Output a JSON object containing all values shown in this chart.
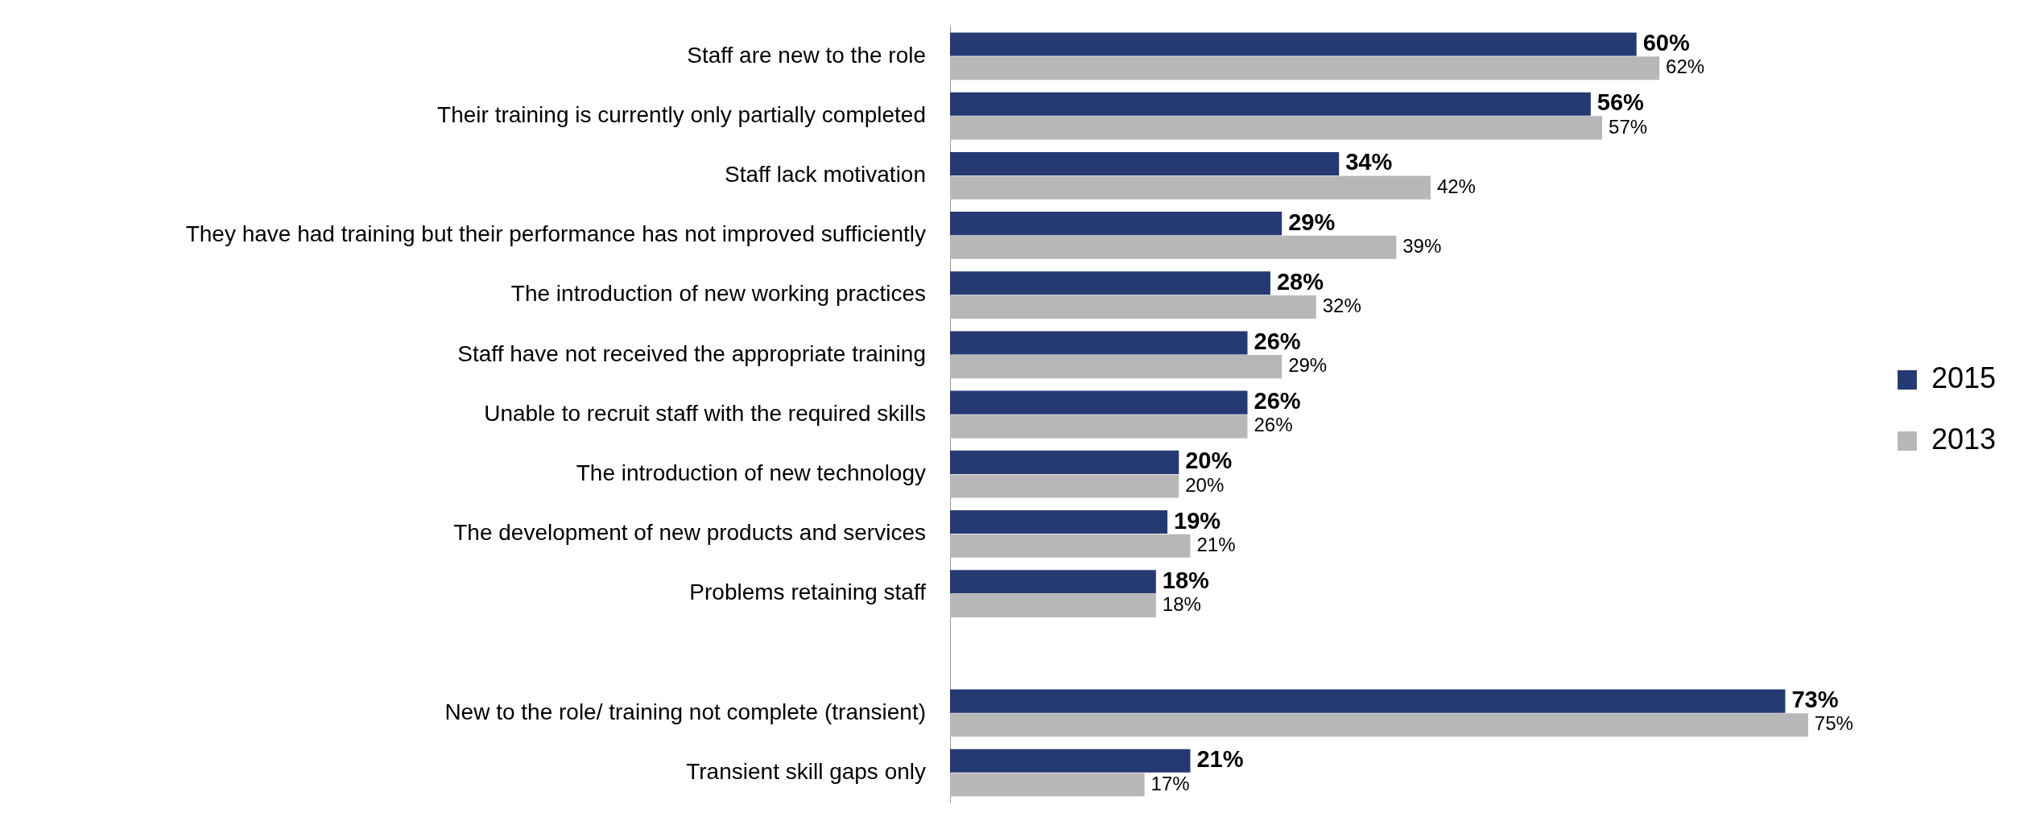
{
  "chart_data": {
    "type": "bar",
    "orientation": "horizontal",
    "categories": [
      "Staff are new to the role",
      "Their training is currently only partially completed",
      "Staff lack motivation",
      "They have had training but their performance has not improved sufficiently",
      "The introduction of new working practices",
      "Staff have not received the appropriate training",
      "Unable to recruit staff with the required skills",
      "The introduction of new technology",
      "The development of new products and services",
      "Problems retaining staff",
      null,
      "New to the role/ training not complete (transient)",
      "Transient skill gaps only"
    ],
    "series": [
      {
        "name": "2015",
        "color": "#253a72",
        "values": [
          60,
          56,
          34,
          29,
          28,
          26,
          26,
          20,
          19,
          18,
          null,
          73,
          21
        ],
        "value_labels": [
          "60%",
          "56%",
          "34%",
          "29%",
          "28%",
          "26%",
          "26%",
          "20%",
          "19%",
          "18%",
          null,
          "73%",
          "21%"
        ]
      },
      {
        "name": "2013",
        "color": "#b7b7b7",
        "values": [
          62,
          57,
          42,
          39,
          32,
          29,
          26,
          20,
          21,
          18,
          null,
          75,
          17
        ],
        "value_labels": [
          "62%",
          "57%",
          "42%",
          "39%",
          "32%",
          "29%",
          "26%",
          "20%",
          "21%",
          "18%",
          null,
          "75%",
          "17%"
        ]
      }
    ],
    "legend": "right"
  }
}
